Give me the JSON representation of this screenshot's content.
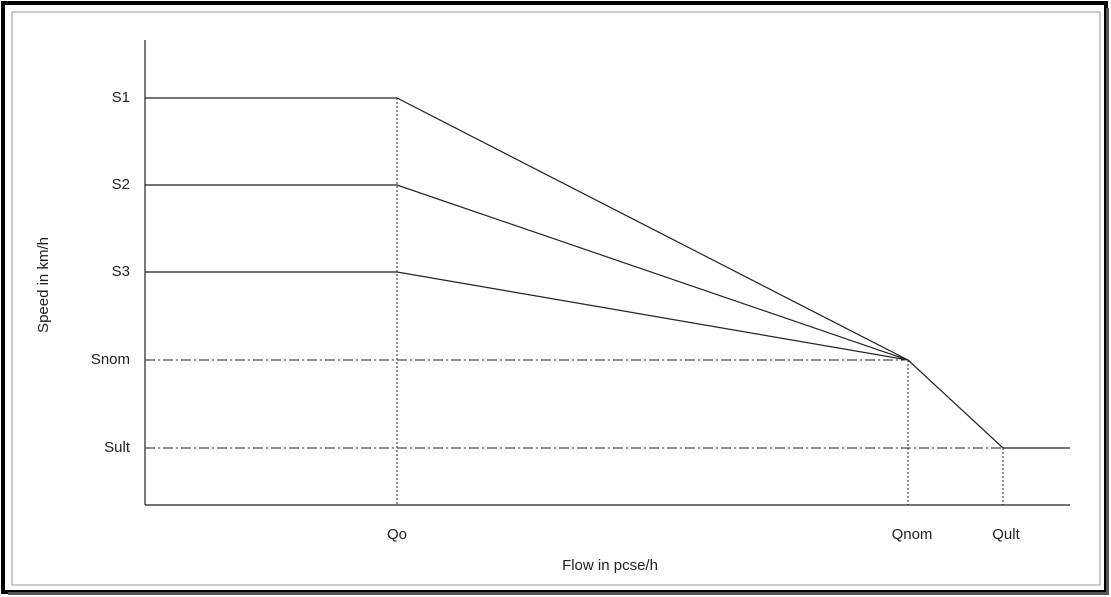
{
  "diagram": {
    "y_axis_label": "Speed in km/h",
    "x_axis_label": "Flow in pcse/h",
    "y_labels": [
      "S1",
      "S2",
      "S3",
      "Snom",
      "Sult"
    ],
    "x_labels": [
      "Qo",
      "Qnom",
      "Qult"
    ]
  }
}
